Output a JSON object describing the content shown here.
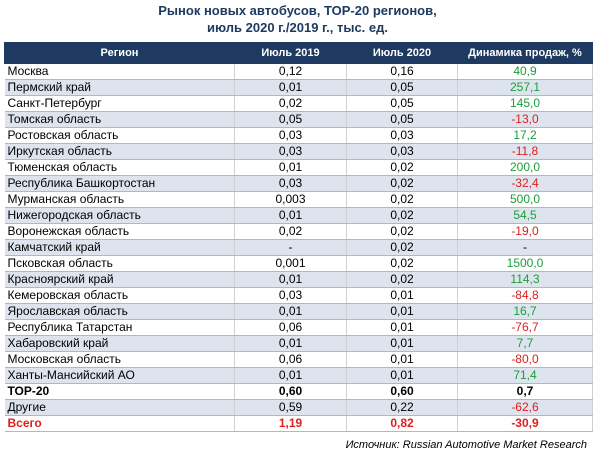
{
  "title_line1": "Рынок новых автобусов, ТОР-20 регионов,",
  "title_line2": "июль 2020 г./2019 г., тыс. ед.",
  "headers": [
    "Регион",
    "Июль 2019",
    "Июль 2020",
    "Динамика продаж, %"
  ],
  "rows": [
    {
      "region": "Москва",
      "y2019": "0,12",
      "y2020": "0,16",
      "dyn": "40,9",
      "sign": "pos"
    },
    {
      "region": "Пермский край",
      "y2019": "0,01",
      "y2020": "0,05",
      "dyn": "257,1",
      "sign": "pos"
    },
    {
      "region": "Санкт-Петербург",
      "y2019": "0,02",
      "y2020": "0,05",
      "dyn": "145,0",
      "sign": "pos"
    },
    {
      "region": "Томская область",
      "y2019": "0,05",
      "y2020": "0,05",
      "dyn": "-13,0",
      "sign": "neg"
    },
    {
      "region": "Ростовская область",
      "y2019": "0,03",
      "y2020": "0,03",
      "dyn": "17,2",
      "sign": "pos"
    },
    {
      "region": "Иркутская область",
      "y2019": "0,03",
      "y2020": "0,03",
      "dyn": "-11,8",
      "sign": "neg"
    },
    {
      "region": "Тюменская область",
      "y2019": "0,01",
      "y2020": "0,02",
      "dyn": "200,0",
      "sign": "pos"
    },
    {
      "region": "Республика Башкортостан",
      "y2019": "0,03",
      "y2020": "0,02",
      "dyn": "-32,4",
      "sign": "neg"
    },
    {
      "region": "Мурманская область",
      "y2019": "0,003",
      "y2020": "0,02",
      "dyn": "500,0",
      "sign": "pos"
    },
    {
      "region": "Нижегородская область",
      "y2019": "0,01",
      "y2020": "0,02",
      "dyn": "54,5",
      "sign": "pos"
    },
    {
      "region": "Воронежская область",
      "y2019": "0,02",
      "y2020": "0,02",
      "dyn": "-19,0",
      "sign": "neg"
    },
    {
      "region": "Камчатский край",
      "y2019": "-",
      "y2020": "0,02",
      "dyn": "-",
      "sign": "neu"
    },
    {
      "region": "Псковская область",
      "y2019": "0,001",
      "y2020": "0,02",
      "dyn": "1500,0",
      "sign": "pos"
    },
    {
      "region": "Красноярский край",
      "y2019": "0,01",
      "y2020": "0,02",
      "dyn": "114,3",
      "sign": "pos"
    },
    {
      "region": "Кемеровская область",
      "y2019": "0,03",
      "y2020": "0,01",
      "dyn": "-84,8",
      "sign": "neg"
    },
    {
      "region": "Ярославская область",
      "y2019": "0,01",
      "y2020": "0,01",
      "dyn": "16,7",
      "sign": "pos"
    },
    {
      "region": "Республика Татарстан",
      "y2019": "0,06",
      "y2020": "0,01",
      "dyn": "-76,7",
      "sign": "neg"
    },
    {
      "region": "Хабаровский край",
      "y2019": "0,01",
      "y2020": "0,01",
      "dyn": "7,7",
      "sign": "pos"
    },
    {
      "region": "Московская область",
      "y2019": "0,06",
      "y2020": "0,01",
      "dyn": "-80,0",
      "sign": "neg"
    },
    {
      "region": "Ханты-Мансийский АО",
      "y2019": "0,01",
      "y2020": "0,01",
      "dyn": "71,4",
      "sign": "pos"
    },
    {
      "region": "ТОР-20",
      "y2019": "0,60",
      "y2020": "0,60",
      "dyn": "0,7",
      "sign": "neu",
      "style": "bold"
    },
    {
      "region": "Другие",
      "y2019": "0,59",
      "y2020": "0,22",
      "dyn": "-62,6",
      "sign": "neg"
    },
    {
      "region": "Всего",
      "y2019": "1,19",
      "y2020": "0,82",
      "dyn": "-30,9",
      "sign": "neg",
      "style": "total"
    }
  ],
  "source_text": "Источник: Russian Automotive Market Research",
  "colors": {
    "header_bg": "#1f3a60",
    "row_alt": "#dde4ee",
    "positive": "#1a9e3a",
    "negative": "#e01e1e"
  }
}
